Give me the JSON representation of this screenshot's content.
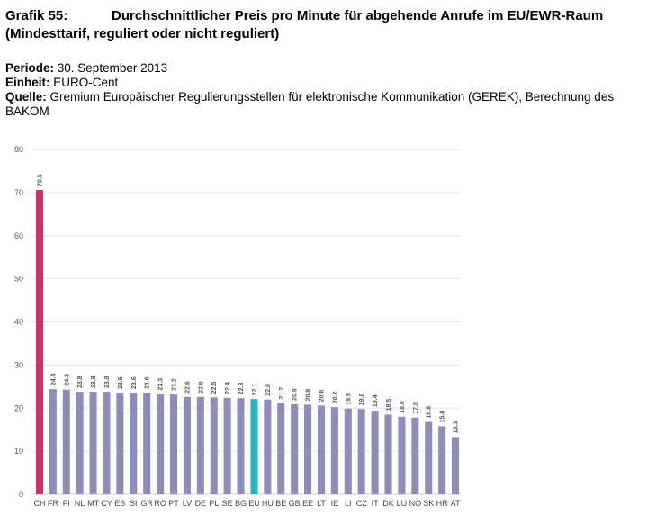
{
  "header": {
    "figure_label": "Grafik 55:",
    "title_line1": "Durchschnittlicher Preis pro Minute für abgehende Anrufe im EU/EWR-Raum",
    "title_line2": "(Mindesttarif, reguliert oder nicht reguliert)"
  },
  "meta": {
    "period_label": "Periode:",
    "period_value": "30. September 2013",
    "unit_label": "Einheit:",
    "unit_value": "EURO-Cent",
    "source_label": "Quelle:",
    "source_value": "Gremium Europäischer Regulierungsstellen für elektronische Kommunikation (GEREK), Berechnung des BAKOM"
  },
  "colors": {
    "default_bar": "#8e8db5",
    "highlight_ch": "#c7336e",
    "highlight_eu": "#2ab3be",
    "grid": "#e6e6e6"
  },
  "chart_data": {
    "type": "bar",
    "title": "",
    "xlabel": "",
    "ylabel": "",
    "ylim": [
      0,
      80
    ],
    "yticks": [
      0,
      10,
      20,
      30,
      40,
      50,
      60,
      70,
      80
    ],
    "grid": true,
    "categories": [
      "CH",
      "FR",
      "FI",
      "NL",
      "MT",
      "CY",
      "ES",
      "SI",
      "GR",
      "RO",
      "PT",
      "LV",
      "DE",
      "PL",
      "SE",
      "BG",
      "EU",
      "HU",
      "BE",
      "GB",
      "EE",
      "LT",
      "IE",
      "LI",
      "CZ",
      "IT",
      "DK",
      "LU",
      "NO",
      "SK",
      "HR",
      "AT"
    ],
    "values": [
      70.6,
      24.4,
      24.3,
      23.8,
      23.8,
      23.8,
      23.6,
      23.6,
      23.6,
      23.3,
      23.2,
      22.6,
      22.6,
      22.5,
      22.4,
      22.3,
      22.1,
      22.0,
      21.2,
      20.9,
      20.8,
      20.6,
      20.2,
      19.9,
      19.8,
      19.4,
      18.5,
      18.0,
      17.8,
      16.8,
      15.8,
      13.3
    ],
    "value_labels": [
      "70.6",
      "24.4",
      "24.3",
      "23.8",
      "23.8",
      "23.8",
      "23.6",
      "23.6",
      "23.6",
      "23.3",
      "23.2",
      "22.6",
      "22.6",
      "22.5",
      "22.4",
      "22.3",
      "22.1",
      "22.0",
      "21.2",
      "20.9",
      "20.8",
      "20.6",
      "20.2",
      "19.9",
      "19.8",
      "19.4",
      "18.5",
      "18.0",
      "17.8",
      "16.8",
      "15.8",
      "13.3"
    ],
    "highlights": {
      "CH": "highlight_ch",
      "EU": "highlight_eu"
    }
  }
}
